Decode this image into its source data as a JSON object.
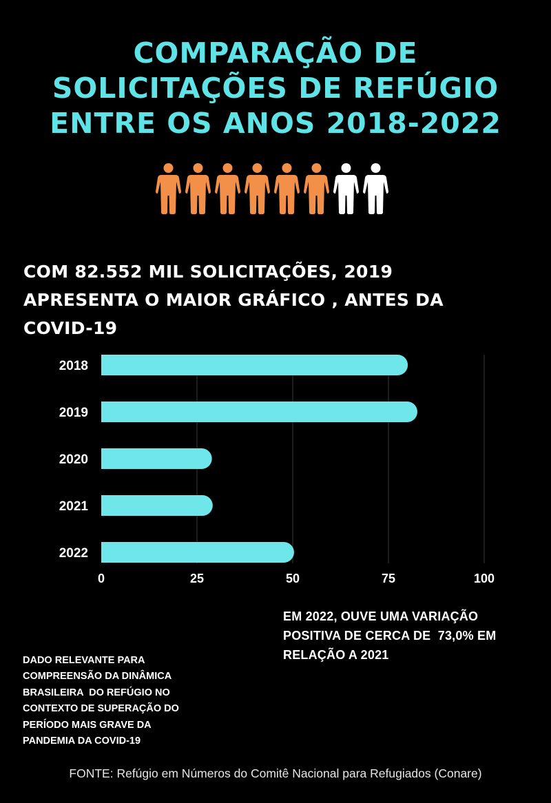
{
  "title_lines": [
    "COMPARAÇÃO DE",
    "SOLICITAÇÕES DE REFÚGIO",
    "ENTRE OS ANOS 2018-2022"
  ],
  "pictogram": {
    "total": 8,
    "highlighted": 6,
    "highlight_color": "#f28f48",
    "other_color": "#ffffff",
    "icon": "person-icon"
  },
  "headline_lines": [
    "COM 82.552 MIL SOLICITAÇÕES, 2019",
    "APRESENTA O MAIOR GRÁFICO , ANTES DA",
    "COVID-19"
  ],
  "chart_data": {
    "type": "bar",
    "orientation": "horizontal",
    "categories": [
      "2018",
      "2019",
      "2020",
      "2021",
      "2022"
    ],
    "values": [
      80.057,
      82.552,
      28.899,
      29.107,
      50.355
    ],
    "unit": "mil solicitações",
    "xlim": [
      0,
      100
    ],
    "xticks": [
      "0",
      "25",
      "50",
      "75",
      "100"
    ],
    "grid": true,
    "bar_color": "#6ee6ea",
    "title": "",
    "xlabel": "",
    "ylabel": ""
  },
  "note_right_lines": [
    "EM 2022, OUVE UMA VARIAÇÃO",
    "POSITIVA DE CERCA DE  73,0% EM",
    "RELAÇÃO A 2021"
  ],
  "note_left_lines": [
    "DADO RELEVANTE PARA",
    "COMPREENSÃO DA DINÂMICA",
    "BRASILEIRA  DO REFÚGIO NO",
    "CONTEXTO DE SUPERAÇÃO DO",
    "PERÍODO MAIS GRAVE DA",
    "PANDEMIA DA COVID-19"
  ],
  "source": "FONTE: Refúgio em Números do Comitê Nacional para Refugiados (Conare)"
}
